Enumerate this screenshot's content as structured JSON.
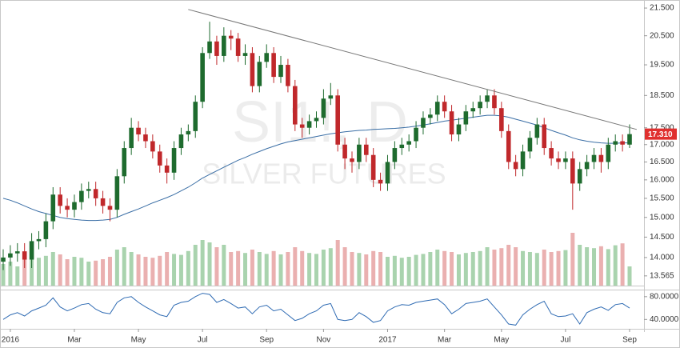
{
  "chart_data": [
    {
      "type": "candlestick",
      "watermark": [
        "SI1!, D",
        "SILVER FUTURES"
      ],
      "categories": [
        null,
        "2016",
        null,
        null,
        null,
        null,
        null,
        null,
        null,
        null,
        "Mar",
        null,
        null,
        null,
        null,
        null,
        null,
        null,
        null,
        "May",
        null,
        null,
        null,
        null,
        null,
        null,
        null,
        null,
        "Jul",
        null,
        null,
        null,
        null,
        null,
        null,
        null,
        null,
        "Sep",
        null,
        null,
        null,
        null,
        null,
        null,
        null,
        "Nov",
        null,
        null,
        null,
        null,
        null,
        null,
        null,
        null,
        "2017",
        null,
        null,
        null,
        null,
        null,
        null,
        null,
        "Mar",
        null,
        null,
        null,
        null,
        null,
        null,
        null,
        "May",
        null,
        null,
        null,
        null,
        null,
        null,
        null,
        null,
        "Jul",
        null,
        null,
        null,
        null,
        null,
        null,
        null,
        null,
        "Sep"
      ],
      "open": [
        13.9,
        14.0,
        14.1,
        14.15,
        13.95,
        14.4,
        14.45,
        14.9,
        15.6,
        15.3,
        15.2,
        15.4,
        15.7,
        15.75,
        15.5,
        15.3,
        15.2,
        16.1,
        16.9,
        17.5,
        17.3,
        17.1,
        16.8,
        16.4,
        16.2,
        16.9,
        17.3,
        17.4,
        18.3,
        19.9,
        20.3,
        19.8,
        20.5,
        20.4,
        19.8,
        19.9,
        18.8,
        19.6,
        19.9,
        19.1,
        19.5,
        18.8,
        17.6,
        17.5,
        17.7,
        17.8,
        18.4,
        18.5,
        17.0,
        16.6,
        16.5,
        17.0,
        16.7,
        16.0,
        15.9,
        16.5,
        16.9,
        17.0,
        17.1,
        17.5,
        17.8,
        17.9,
        18.3,
        18.0,
        17.3,
        17.6,
        18.0,
        18.1,
        18.3,
        18.5,
        18.1,
        17.4,
        16.5,
        16.3,
        16.8,
        17.2,
        17.6,
        16.9,
        16.6,
        16.5,
        16.6,
        15.9,
        16.3,
        16.5,
        16.7,
        16.5,
        17.0,
        17.1,
        17.0
      ],
      "high": [
        14.2,
        14.3,
        14.35,
        14.35,
        14.6,
        14.65,
        15.1,
        15.8,
        15.8,
        15.5,
        15.6,
        15.9,
        15.95,
        15.95,
        15.7,
        15.5,
        16.3,
        17.1,
        17.8,
        17.7,
        17.5,
        17.3,
        17.0,
        16.6,
        17.1,
        17.5,
        17.6,
        18.5,
        20.1,
        21.0,
        20.5,
        20.8,
        20.7,
        20.6,
        20.2,
        20.1,
        19.8,
        20.2,
        20.1,
        19.8,
        19.7,
        19.0,
        17.8,
        17.9,
        18.0,
        18.7,
        18.9,
        18.7,
        17.2,
        16.8,
        17.2,
        17.2,
        16.9,
        16.2,
        16.7,
        17.1,
        17.2,
        17.3,
        17.7,
        18.0,
        18.1,
        18.5,
        18.5,
        18.2,
        17.8,
        18.2,
        18.3,
        18.5,
        18.7,
        18.7,
        18.3,
        17.6,
        16.7,
        17.0,
        17.4,
        17.8,
        17.8,
        17.1,
        16.8,
        16.8,
        16.8,
        16.5,
        16.7,
        16.9,
        16.9,
        17.2,
        17.3,
        17.3,
        17.6
      ],
      "low": [
        13.7,
        13.8,
        13.9,
        13.75,
        13.75,
        14.2,
        14.25,
        14.7,
        15.1,
        15.0,
        15.0,
        15.2,
        15.5,
        15.3,
        15.1,
        14.9,
        15.0,
        15.9,
        16.7,
        17.1,
        16.9,
        16.6,
        16.2,
        15.9,
        16.0,
        16.7,
        17.1,
        17.2,
        18.1,
        19.7,
        19.5,
        19.6,
        20.0,
        19.6,
        19.5,
        18.6,
        18.6,
        19.4,
        18.9,
        18.9,
        18.6,
        17.4,
        17.2,
        17.3,
        17.5,
        17.6,
        18.2,
        16.8,
        16.3,
        16.2,
        16.3,
        16.5,
        15.8,
        15.7,
        15.7,
        16.3,
        16.7,
        16.8,
        16.9,
        17.3,
        17.6,
        17.7,
        17.8,
        17.1,
        17.1,
        17.4,
        17.8,
        17.9,
        18.1,
        17.9,
        17.2,
        16.3,
        16.1,
        16.1,
        16.6,
        17.0,
        16.7,
        16.4,
        16.3,
        16.3,
        15.2,
        15.7,
        16.1,
        16.3,
        16.2,
        16.3,
        16.8,
        16.8,
        16.9
      ],
      "close": [
        14.0,
        14.1,
        14.15,
        13.95,
        14.4,
        14.45,
        14.9,
        15.6,
        15.3,
        15.2,
        15.4,
        15.7,
        15.75,
        15.5,
        15.3,
        15.2,
        16.1,
        16.9,
        17.5,
        17.3,
        17.1,
        16.8,
        16.4,
        16.2,
        16.9,
        17.3,
        17.4,
        18.3,
        19.9,
        20.3,
        19.8,
        20.5,
        20.4,
        19.8,
        19.9,
        18.8,
        19.6,
        19.9,
        19.1,
        19.5,
        18.8,
        17.6,
        17.5,
        17.7,
        17.8,
        18.4,
        18.5,
        17.0,
        16.6,
        16.5,
        17.0,
        16.7,
        16.0,
        15.9,
        16.5,
        16.9,
        17.0,
        17.1,
        17.5,
        17.8,
        17.9,
        18.3,
        18.0,
        17.3,
        17.6,
        18.0,
        18.1,
        18.3,
        18.5,
        18.1,
        17.4,
        16.5,
        16.3,
        16.8,
        17.2,
        17.6,
        16.9,
        16.6,
        16.5,
        16.6,
        15.9,
        16.3,
        16.5,
        16.7,
        16.5,
        17.0,
        17.1,
        17.0,
        17.31
      ],
      "up_color": "#1e6b2e",
      "down_color": "#c0282b",
      "log_scale": true,
      "ylim": [
        13.34,
        21.71
      ],
      "yticks": [
        {
          "value": 21.5,
          "label": "21.500"
        },
        {
          "value": 20.5,
          "label": "20.500"
        },
        {
          "value": 19.5,
          "label": "19.500"
        },
        {
          "value": 18.5,
          "label": "18.500"
        },
        {
          "value": 17.5,
          "label": "17.500"
        },
        {
          "value": 17,
          "label": "17.000"
        },
        {
          "value": 16.5,
          "label": "16.500"
        },
        {
          "value": 16,
          "label": "16.000"
        },
        {
          "value": 15.5,
          "label": "15.500"
        },
        {
          "value": 15,
          "label": "15.000"
        },
        {
          "value": 14.5,
          "label": "14.500"
        },
        {
          "value": 14,
          "label": "14.000"
        },
        13.565
      ],
      "last_price": {
        "value": 17.31,
        "label": "17.310"
      },
      "last_price_color": "#e0302f",
      "moving_average": {
        "color": "#3a6ea5",
        "values": [
          15.5,
          15.45,
          15.38,
          15.3,
          15.22,
          15.15,
          15.1,
          15.05,
          15.0,
          14.97,
          14.95,
          14.93,
          14.92,
          14.92,
          14.93,
          14.95,
          15.0,
          15.08,
          15.15,
          15.22,
          15.3,
          15.38,
          15.45,
          15.52,
          15.6,
          15.7,
          15.8,
          15.92,
          16.05,
          16.15,
          16.25,
          16.35,
          16.45,
          16.55,
          16.63,
          16.72,
          16.8,
          16.88,
          16.95,
          17.02,
          17.08,
          17.12,
          17.16,
          17.2,
          17.24,
          17.28,
          17.32,
          17.35,
          17.38,
          17.4,
          17.42,
          17.43,
          17.45,
          17.46,
          17.47,
          17.48,
          17.5,
          17.52,
          17.55,
          17.58,
          17.62,
          17.66,
          17.7,
          17.73,
          17.76,
          17.79,
          17.82,
          17.85,
          17.88,
          17.88,
          17.86,
          17.82,
          17.76,
          17.7,
          17.64,
          17.58,
          17.5,
          17.42,
          17.35,
          17.28,
          17.2,
          17.14,
          17.1,
          17.07,
          17.05,
          17.04,
          17.04,
          17.05,
          17.05
        ]
      },
      "trendline": {
        "color": "#777777",
        "x": [
          26,
          89
        ],
        "y": [
          21.45,
          17.45
        ]
      },
      "volume": {
        "up_color": "#a9d3ae",
        "down_color": "#eab0b0",
        "ylim": [
          0,
          150
        ],
        "values": [
          45,
          50,
          40,
          55,
          60,
          58,
          62,
          70,
          65,
          55,
          60,
          58,
          50,
          52,
          55,
          60,
          75,
          80,
          70,
          65,
          60,
          58,
          62,
          70,
          66,
          64,
          72,
          85,
          95,
          90,
          80,
          85,
          70,
          72,
          68,
          75,
          70,
          66,
          72,
          65,
          70,
          80,
          72,
          68,
          66,
          75,
          78,
          95,
          80,
          70,
          68,
          65,
          72,
          70,
          60,
          62,
          58,
          60,
          64,
          66,
          70,
          75,
          72,
          70,
          65,
          68,
          70,
          72,
          80,
          75,
          78,
          85,
          80,
          72,
          70,
          68,
          75,
          70,
          72,
          74,
          110,
          85,
          80,
          78,
          82,
          76,
          84,
          88,
          40
        ]
      }
    },
    {
      "type": "line",
      "color": "#2f6bb3",
      "values": [
        40,
        48,
        52,
        46,
        55,
        60,
        65,
        78,
        62,
        55,
        60,
        66,
        68,
        58,
        52,
        50,
        70,
        78,
        80,
        70,
        62,
        55,
        48,
        45,
        65,
        70,
        72,
        80,
        86,
        84,
        70,
        75,
        68,
        60,
        62,
        50,
        62,
        65,
        55,
        58,
        48,
        38,
        42,
        50,
        55,
        65,
        68,
        40,
        38,
        40,
        52,
        45,
        35,
        38,
        55,
        62,
        66,
        65,
        70,
        72,
        74,
        76,
        66,
        50,
        58,
        68,
        70,
        72,
        76,
        62,
        48,
        32,
        30,
        48,
        58,
        66,
        72,
        50,
        45,
        46,
        50,
        32,
        52,
        58,
        62,
        56,
        66,
        68,
        60
      ],
      "ylim": [
        25,
        91
      ],
      "yticks": [
        {
          "value": 80,
          "label": "80.0000"
        },
        {
          "value": 40,
          "label": "40.0000"
        }
      ]
    }
  ]
}
